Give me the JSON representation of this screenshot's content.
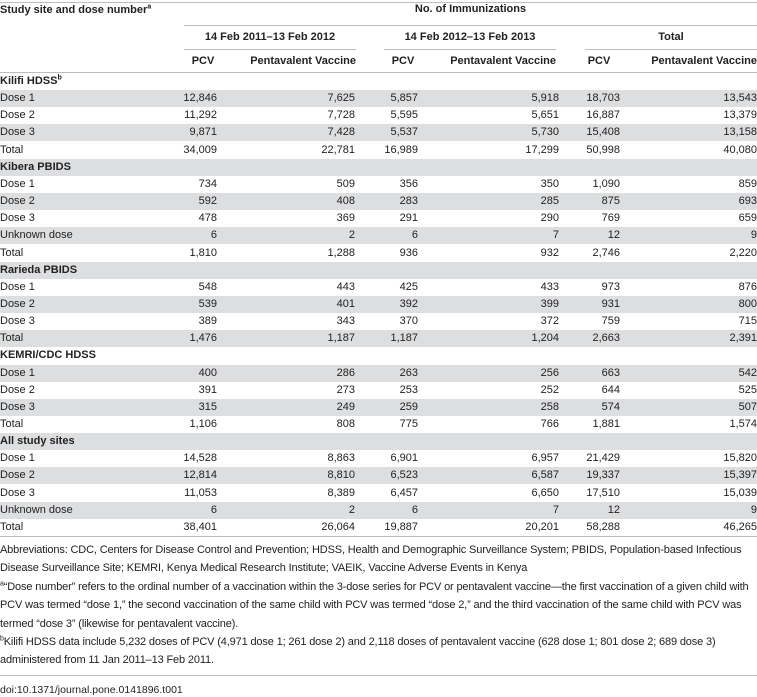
{
  "header": {
    "stub": "Study site and dose number",
    "stub_sup": "a",
    "spanner": "No. of Immunizations",
    "periods": [
      "14 Feb 2011–13 Feb 2012",
      "14 Feb 2012–13 Feb 2013",
      "Total"
    ],
    "subcols": [
      "PCV",
      "Pentavalent Vaccine",
      "PCV",
      "Pentavalent Vaccine",
      "PCV",
      "Pentavalent Vaccine"
    ]
  },
  "sections": [
    {
      "title": "Kilifi HDSS",
      "sup": "b",
      "rows": [
        {
          "label": "Dose 1",
          "values": [
            "12,846",
            "7,625",
            "5,857",
            "5,918",
            "18,703",
            "13,543"
          ]
        },
        {
          "label": "Dose 2",
          "values": [
            "11,292",
            "7,728",
            "5,595",
            "5,651",
            "16,887",
            "13,379"
          ]
        },
        {
          "label": "Dose 3",
          "values": [
            "9,871",
            "7,428",
            "5,537",
            "5,730",
            "15,408",
            "13,158"
          ]
        },
        {
          "label": "Total",
          "values": [
            "34,009",
            "22,781",
            "16,989",
            "17,299",
            "50,998",
            "40,080"
          ]
        }
      ]
    },
    {
      "title": "Kibera PBIDS",
      "rows": [
        {
          "label": "Dose 1",
          "values": [
            "734",
            "509",
            "356",
            "350",
            "1,090",
            "859"
          ]
        },
        {
          "label": "Dose 2",
          "values": [
            "592",
            "408",
            "283",
            "285",
            "875",
            "693"
          ]
        },
        {
          "label": "Dose 3",
          "values": [
            "478",
            "369",
            "291",
            "290",
            "769",
            "659"
          ]
        },
        {
          "label": "Unknown dose",
          "values": [
            "6",
            "2",
            "6",
            "7",
            "12",
            "9"
          ]
        },
        {
          "label": "Total",
          "values": [
            "1,810",
            "1,288",
            "936",
            "932",
            "2,746",
            "2,220"
          ]
        }
      ]
    },
    {
      "title": "Rarieda PBIDS",
      "rows": [
        {
          "label": "Dose 1",
          "values": [
            "548",
            "443",
            "425",
            "433",
            "973",
            "876"
          ]
        },
        {
          "label": "Dose 2",
          "values": [
            "539",
            "401",
            "392",
            "399",
            "931",
            "800"
          ]
        },
        {
          "label": "Dose 3",
          "values": [
            "389",
            "343",
            "370",
            "372",
            "759",
            "715"
          ]
        },
        {
          "label": "Total",
          "values": [
            "1,476",
            "1,187",
            "1,187",
            "1,204",
            "2,663",
            "2,391"
          ]
        }
      ]
    },
    {
      "title": "KEMRI/CDC HDSS",
      "rows": [
        {
          "label": "Dose 1",
          "values": [
            "400",
            "286",
            "263",
            "256",
            "663",
            "542"
          ]
        },
        {
          "label": "Dose 2",
          "values": [
            "391",
            "273",
            "253",
            "252",
            "644",
            "525"
          ]
        },
        {
          "label": "Dose 3",
          "values": [
            "315",
            "249",
            "259",
            "258",
            "574",
            "507"
          ]
        },
        {
          "label": "Total",
          "values": [
            "1,106",
            "808",
            "775",
            "766",
            "1,881",
            "1,574"
          ]
        }
      ]
    },
    {
      "title": "All study sites",
      "rows": [
        {
          "label": "Dose 1",
          "values": [
            "14,528",
            "8,863",
            "6,901",
            "6,957",
            "21,429",
            "15,820"
          ]
        },
        {
          "label": "Dose 2",
          "values": [
            "12,814",
            "8,810",
            "6,523",
            "6,587",
            "19,337",
            "15,397"
          ]
        },
        {
          "label": "Dose 3",
          "values": [
            "11,053",
            "8,389",
            "6,457",
            "6,650",
            "17,510",
            "15,039"
          ]
        },
        {
          "label": "Unknown dose",
          "values": [
            "6",
            "2",
            "6",
            "7",
            "12",
            "9"
          ]
        },
        {
          "label": "Total",
          "values": [
            "38,401",
            "26,064",
            "19,887",
            "20,201",
            "58,288",
            "46,265"
          ]
        }
      ]
    }
  ],
  "footnotes": {
    "abbreviations": "Abbreviations: CDC, Centers for Disease Control and Prevention; HDSS, Health and Demographic Surveillance System; PBIDS, Population-based Infectious Disease Surveillance Site; KEMRI, Kenya Medical Research Institute; VAEIK, Vaccine Adverse Events in Kenya",
    "a_mark": "a",
    "a": "“Dose number” refers to the ordinal number of a vaccination within the 3-dose series for PCV or pentavalent vaccine—the first vaccination of a given child with PCV was termed “dose 1,” the second vaccination of the same child with PCV was termed “dose 2,” and the third vaccination of the same child with PCV was termed “dose 3” (likewise for pentavalent vaccine).",
    "b_mark": "b",
    "b": "Kilifi HDSS data include 5,232 doses of PCV (4,971 dose 1; 261 dose 2) and 2,118 doses of pentavalent vaccine (628 dose 1; 801 dose 2; 689 dose 3) administered from 11 Jan 2011–13 Feb 2011."
  },
  "doi": "doi:10.1371/journal.pone.0141896.t001",
  "colors": {
    "shade": "#dddee0",
    "rule": "#bdbdbd"
  }
}
